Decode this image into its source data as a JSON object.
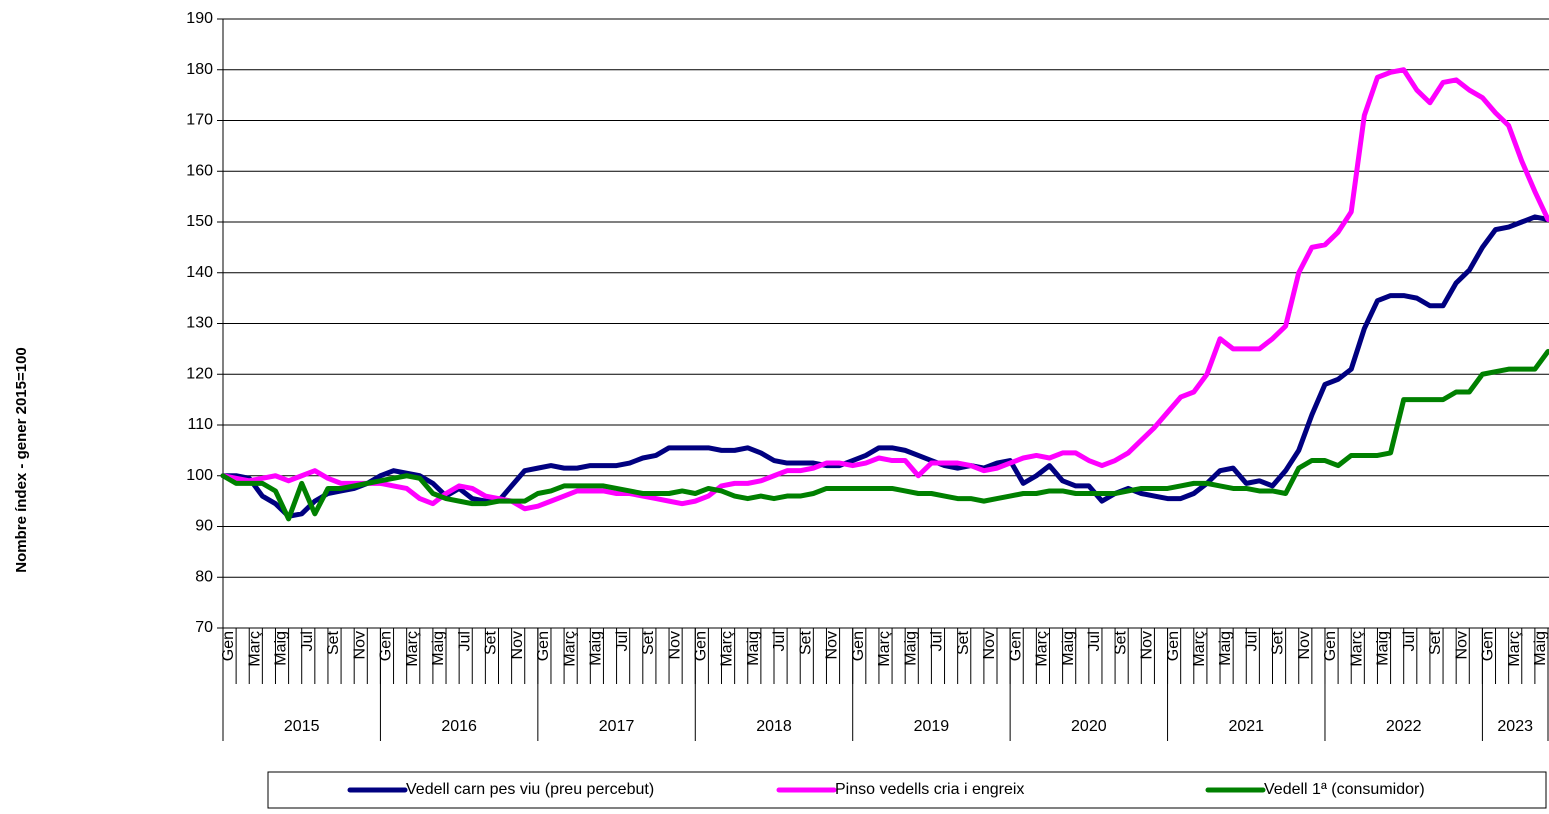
{
  "chart_data": {
    "type": "line",
    "y_label": "Nombre índex - gener 2015=100",
    "categories": [
      "Gen",
      null,
      "Març",
      null,
      "Maig",
      null,
      "Jul",
      null,
      "Set",
      null,
      "Nov",
      null,
      "Gen",
      null,
      "Març",
      null,
      "Maig",
      null,
      "Jul",
      null,
      "Set",
      null,
      "Nov",
      null,
      "Gen",
      null,
      "Març",
      null,
      "Maig",
      null,
      "Jul",
      null,
      "Set",
      null,
      "Nov",
      null,
      "Gen",
      null,
      "Març",
      null,
      "Maig",
      null,
      "Jul",
      null,
      "Set",
      null,
      "Nov",
      null,
      "Gen",
      null,
      "Març",
      null,
      "Maig",
      null,
      "Jul",
      null,
      "Set",
      null,
      "Nov",
      null,
      "Gen",
      null,
      "Març",
      null,
      "Maig",
      null,
      "Jul",
      null,
      "Set",
      null,
      "Nov",
      null,
      "Gen",
      null,
      "Març",
      null,
      "Maig",
      null,
      "Jul",
      null,
      "Set",
      null,
      "Nov",
      null,
      "Gen",
      null,
      "Març",
      null,
      "Maig",
      null,
      "Jul",
      null,
      "Set",
      null,
      "Nov",
      null,
      "Gen",
      null,
      "Març",
      null,
      "Maig",
      null
    ],
    "years": [
      "2015",
      "2016",
      "2017",
      "2018",
      "2019",
      "2020",
      "2021",
      "2022",
      "2023"
    ],
    "series": [
      {
        "name": "Vedell carn pes viu (preu percebut)",
        "color": "#000080",
        "values": [
          100,
          100,
          99.5,
          96,
          94.5,
          92,
          92.5,
          95,
          96.5,
          97,
          97.5,
          98.5,
          100,
          101,
          100.5,
          100,
          98.5,
          96,
          97.5,
          95.5,
          95,
          95,
          98,
          101,
          101.5,
          102,
          101.5,
          101.5,
          102,
          102,
          102,
          102.5,
          103.5,
          104,
          105.5,
          105.5,
          105.5,
          105.5,
          105,
          105,
          105.5,
          104.5,
          103,
          102.5,
          102.5,
          102.5,
          102,
          102,
          103,
          104,
          105.5,
          105.5,
          105,
          104,
          103,
          102,
          101.5,
          102,
          101.5,
          102.5,
          103,
          98.5,
          100,
          102,
          99,
          98,
          98,
          95,
          96.5,
          97.5,
          96.5,
          96,
          95.5,
          95.5,
          96.5,
          98.5,
          101,
          101.5,
          98.5,
          99,
          98,
          101,
          105,
          112,
          118,
          119,
          121,
          129,
          134.5,
          135.5,
          135.5,
          135,
          133.5,
          133.5,
          138,
          140.5,
          145,
          148.5,
          149,
          150,
          151,
          150.5
        ]
      },
      {
        "name": "Pinso vedells cria i engreix",
        "color": "#ff00ff",
        "values": [
          100,
          99.5,
          99,
          99.5,
          100,
          99,
          100,
          101,
          99.5,
          98.5,
          98.5,
          98.5,
          98.5,
          98,
          97.5,
          95.5,
          94.5,
          96.5,
          98,
          97.5,
          96,
          95.5,
          95,
          93.5,
          94,
          95,
          96,
          97,
          97,
          97,
          96.5,
          96.5,
          96,
          95.5,
          95,
          94.5,
          95,
          96,
          98,
          98.5,
          98.5,
          99,
          100,
          101,
          101,
          101.5,
          102.5,
          102.5,
          102,
          102.5,
          103.5,
          103,
          103,
          100,
          102.5,
          102.5,
          102.5,
          102,
          101,
          101.5,
          102.5,
          103.5,
          104,
          103.5,
          104.5,
          104.5,
          103,
          102,
          103,
          104.5,
          107,
          109.5,
          112.5,
          115.5,
          116.5,
          120,
          127,
          125,
          125,
          125,
          127,
          129.5,
          140,
          145,
          145.5,
          148,
          152,
          171,
          178.5,
          179.5,
          180,
          176,
          173.5,
          177.5,
          178,
          176,
          174.5,
          171.5,
          169,
          162,
          156,
          150.5
        ]
      },
      {
        "name": "Vedell 1ª (consumidor)",
        "color": "#008000",
        "values": [
          100,
          98.5,
          98.5,
          98.5,
          97,
          91.5,
          98.5,
          92.5,
          97.5,
          97.5,
          98,
          98.5,
          99,
          99.5,
          100,
          99.5,
          96.5,
          95.5,
          95,
          94.5,
          94.5,
          95,
          95,
          95,
          96.5,
          97,
          98,
          98,
          98,
          98,
          97.5,
          97,
          96.5,
          96.5,
          96.5,
          97,
          96.5,
          97.5,
          97,
          96,
          95.5,
          96,
          95.5,
          96,
          96,
          96.5,
          97.5,
          97.5,
          97.5,
          97.5,
          97.5,
          97.5,
          97,
          96.5,
          96.5,
          96,
          95.5,
          95.5,
          95,
          95.5,
          96,
          96.5,
          96.5,
          97,
          97,
          96.5,
          96.5,
          96.5,
          96.5,
          97,
          97.5,
          97.5,
          97.5,
          98,
          98.5,
          98.5,
          98,
          97.5,
          97.5,
          97,
          97,
          96.5,
          101.5,
          103,
          103,
          102,
          104,
          104,
          104,
          104.5,
          115,
          115,
          115,
          115,
          116.5,
          116.5,
          120,
          120.5,
          121,
          121,
          121,
          124.5
        ]
      }
    ],
    "ylim": [
      70,
      190
    ],
    "yticks": [
      70,
      80,
      90,
      100,
      110,
      120,
      130,
      140,
      150,
      160,
      170,
      180,
      190
    ],
    "grid": true
  }
}
